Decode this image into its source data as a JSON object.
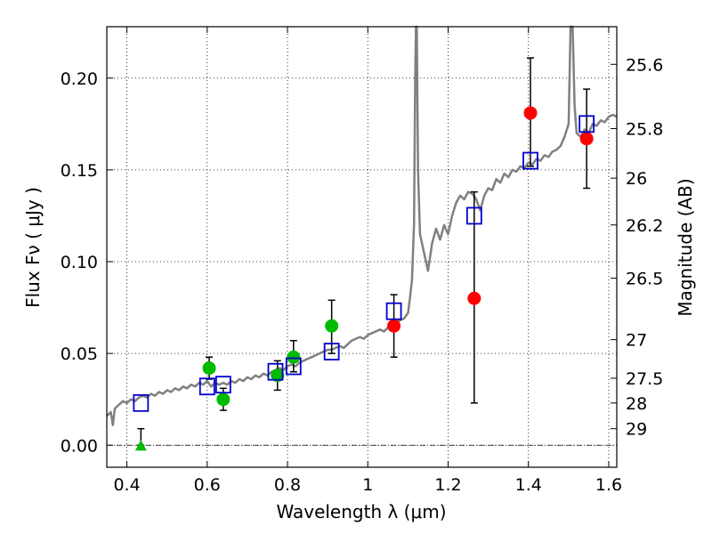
{
  "chart_data": {
    "type": "scatter",
    "xlabel": "Wavelength  λ (μm)",
    "ylabel": "Flux  Fν  ( μJy )",
    "ylabel_right": "Magnitude (AB)",
    "xlim": [
      0.35,
      1.62
    ],
    "ylim": [
      -0.012,
      0.228
    ],
    "grid": true,
    "x_ticks": [
      0.4,
      0.6,
      0.8,
      1.0,
      1.2,
      1.4,
      1.6
    ],
    "x_tick_labels": [
      "0.4",
      "0.6",
      "0.8",
      "1",
      "1.2",
      "1.4",
      "1.6"
    ],
    "y_ticks": [
      0.0,
      0.05,
      0.1,
      0.15,
      0.2
    ],
    "y_tick_labels": [
      "0.00",
      "0.05",
      "0.10",
      "0.15",
      "0.20"
    ],
    "right_ticks": [
      {
        "label": "25.6",
        "flux": 0.2075
      },
      {
        "label": "25.8",
        "flux": 0.1725
      },
      {
        "label": "26",
        "flux": 0.1455
      },
      {
        "label": "26.2",
        "flux": 0.12
      },
      {
        "label": "26.5",
        "flux": 0.091
      },
      {
        "label": "27",
        "flux": 0.0575
      },
      {
        "label": "27.5",
        "flux": 0.0365
      },
      {
        "label": "28",
        "flux": 0.023
      },
      {
        "label": "29",
        "flux": 0.009
      }
    ],
    "model_spectrum": {
      "color": "#808080",
      "points": [
        [
          0.35,
          0.016
        ],
        [
          0.36,
          0.018
        ],
        [
          0.365,
          0.011
        ],
        [
          0.37,
          0.02
        ],
        [
          0.38,
          0.022
        ],
        [
          0.39,
          0.024
        ],
        [
          0.4,
          0.023
        ],
        [
          0.41,
          0.025
        ],
        [
          0.42,
          0.024
        ],
        [
          0.43,
          0.026
        ],
        [
          0.44,
          0.027
        ],
        [
          0.45,
          0.026
        ],
        [
          0.46,
          0.028
        ],
        [
          0.47,
          0.027
        ],
        [
          0.48,
          0.029
        ],
        [
          0.49,
          0.028
        ],
        [
          0.5,
          0.03
        ],
        [
          0.51,
          0.029
        ],
        [
          0.52,
          0.031
        ],
        [
          0.53,
          0.03
        ],
        [
          0.54,
          0.032
        ],
        [
          0.55,
          0.031
        ],
        [
          0.56,
          0.033
        ],
        [
          0.57,
          0.032
        ],
        [
          0.58,
          0.034
        ],
        [
          0.59,
          0.033
        ],
        [
          0.6,
          0.035
        ],
        [
          0.61,
          0.032
        ],
        [
          0.62,
          0.034
        ],
        [
          0.63,
          0.033
        ],
        [
          0.64,
          0.034
        ],
        [
          0.65,
          0.033
        ],
        [
          0.66,
          0.035
        ],
        [
          0.67,
          0.034
        ],
        [
          0.68,
          0.036
        ],
        [
          0.69,
          0.035
        ],
        [
          0.7,
          0.037
        ],
        [
          0.71,
          0.036
        ],
        [
          0.72,
          0.038
        ],
        [
          0.73,
          0.037
        ],
        [
          0.74,
          0.039
        ],
        [
          0.75,
          0.038
        ],
        [
          0.76,
          0.04
        ],
        [
          0.77,
          0.041
        ],
        [
          0.78,
          0.042
        ],
        [
          0.79,
          0.041
        ],
        [
          0.8,
          0.043
        ],
        [
          0.81,
          0.044
        ],
        [
          0.82,
          0.043
        ],
        [
          0.83,
          0.045
        ],
        [
          0.84,
          0.046
        ],
        [
          0.85,
          0.047
        ],
        [
          0.86,
          0.048
        ],
        [
          0.87,
          0.049
        ],
        [
          0.88,
          0.05
        ],
        [
          0.89,
          0.051
        ],
        [
          0.9,
          0.052
        ],
        [
          0.91,
          0.052
        ],
        [
          0.92,
          0.053
        ],
        [
          0.93,
          0.054
        ],
        [
          0.94,
          0.053
        ],
        [
          0.95,
          0.055
        ],
        [
          0.96,
          0.057
        ],
        [
          0.97,
          0.058
        ],
        [
          0.98,
          0.059
        ],
        [
          0.99,
          0.058
        ],
        [
          1.0,
          0.06
        ],
        [
          1.01,
          0.061
        ],
        [
          1.02,
          0.062
        ],
        [
          1.03,
          0.063
        ],
        [
          1.04,
          0.062
        ],
        [
          1.05,
          0.064
        ],
        [
          1.06,
          0.066
        ],
        [
          1.07,
          0.067
        ],
        [
          1.08,
          0.068
        ],
        [
          1.09,
          0.069
        ],
        [
          1.1,
          0.072
        ],
        [
          1.105,
          0.08
        ],
        [
          1.11,
          0.09
        ],
        [
          1.115,
          0.12
        ],
        [
          1.118,
          0.2
        ],
        [
          1.12,
          0.228
        ],
        [
          1.122,
          0.228
        ],
        [
          1.125,
          0.15
        ],
        [
          1.13,
          0.115
        ],
        [
          1.14,
          0.105
        ],
        [
          1.15,
          0.095
        ],
        [
          1.16,
          0.11
        ],
        [
          1.17,
          0.118
        ],
        [
          1.18,
          0.112
        ],
        [
          1.19,
          0.12
        ],
        [
          1.2,
          0.115
        ],
        [
          1.21,
          0.125
        ],
        [
          1.22,
          0.132
        ],
        [
          1.23,
          0.136
        ],
        [
          1.24,
          0.134
        ],
        [
          1.25,
          0.138
        ],
        [
          1.26,
          0.137
        ],
        [
          1.27,
          0.134
        ],
        [
          1.28,
          0.128
        ],
        [
          1.29,
          0.136
        ],
        [
          1.3,
          0.14
        ],
        [
          1.31,
          0.139
        ],
        [
          1.32,
          0.145
        ],
        [
          1.33,
          0.143
        ],
        [
          1.34,
          0.148
        ],
        [
          1.35,
          0.146
        ],
        [
          1.36,
          0.15
        ],
        [
          1.37,
          0.149
        ],
        [
          1.38,
          0.152
        ],
        [
          1.39,
          0.151
        ],
        [
          1.4,
          0.154
        ],
        [
          1.41,
          0.153
        ],
        [
          1.42,
          0.156
        ],
        [
          1.43,
          0.155
        ],
        [
          1.44,
          0.158
        ],
        [
          1.45,
          0.157
        ],
        [
          1.46,
          0.16
        ],
        [
          1.47,
          0.161
        ],
        [
          1.48,
          0.163
        ],
        [
          1.49,
          0.168
        ],
        [
          1.5,
          0.175
        ],
        [
          1.505,
          0.228
        ],
        [
          1.51,
          0.228
        ],
        [
          1.515,
          0.185
        ],
        [
          1.52,
          0.17
        ],
        [
          1.53,
          0.168
        ],
        [
          1.54,
          0.172
        ],
        [
          1.55,
          0.17
        ],
        [
          1.56,
          0.175
        ],
        [
          1.57,
          0.174
        ],
        [
          1.58,
          0.177
        ],
        [
          1.59,
          0.176
        ],
        [
          1.6,
          0.179
        ],
        [
          1.61,
          0.18
        ],
        [
          1.62,
          0.179
        ]
      ]
    },
    "series": [
      {
        "marker": "circle",
        "color": "#ff0000",
        "points": [
          {
            "x": 1.065,
            "y": 0.065,
            "yerr": [
              0.048,
              0.082
            ]
          },
          {
            "x": 1.265,
            "y": 0.08,
            "yerr": [
              0.023,
              0.138
            ]
          },
          {
            "x": 1.405,
            "y": 0.181,
            "yerr": [
              0.152,
              0.211
            ]
          },
          {
            "x": 1.545,
            "y": 0.167,
            "yerr": [
              0.14,
              0.194
            ]
          }
        ]
      },
      {
        "marker": "circle",
        "color": "#00bb00",
        "points": [
          {
            "x": 0.605,
            "y": 0.042,
            "yerr": [
              0.036,
              0.048
            ]
          },
          {
            "x": 0.64,
            "y": 0.025,
            "yerr": [
              0.019,
              0.031
            ]
          },
          {
            "x": 0.775,
            "y": 0.038,
            "yerr": [
              0.03,
              0.046
            ]
          },
          {
            "x": 0.815,
            "y": 0.048,
            "yerr": [
              0.04,
              0.057
            ]
          },
          {
            "x": 0.91,
            "y": 0.065,
            "yerr": [
              0.05,
              0.079
            ]
          }
        ]
      },
      {
        "marker": "triangle",
        "color": "#00bb00",
        "points": [
          {
            "x": 0.435,
            "y": 0.0,
            "yerr": [
              0.0,
              0.009
            ]
          }
        ]
      },
      {
        "marker": "open-square",
        "color": "#0000cc",
        "points": [
          {
            "x": 0.435,
            "y": 0.023
          },
          {
            "x": 0.6,
            "y": 0.032
          },
          {
            "x": 0.64,
            "y": 0.033
          },
          {
            "x": 0.77,
            "y": 0.04
          },
          {
            "x": 0.815,
            "y": 0.043
          },
          {
            "x": 0.91,
            "y": 0.051
          },
          {
            "x": 1.065,
            "y": 0.073
          },
          {
            "x": 1.265,
            "y": 0.125
          },
          {
            "x": 1.405,
            "y": 0.155
          },
          {
            "x": 1.545,
            "y": 0.175
          }
        ]
      }
    ],
    "zero_line": {
      "y": 0.0,
      "style": "dash-dot",
      "color": "#000000"
    }
  }
}
